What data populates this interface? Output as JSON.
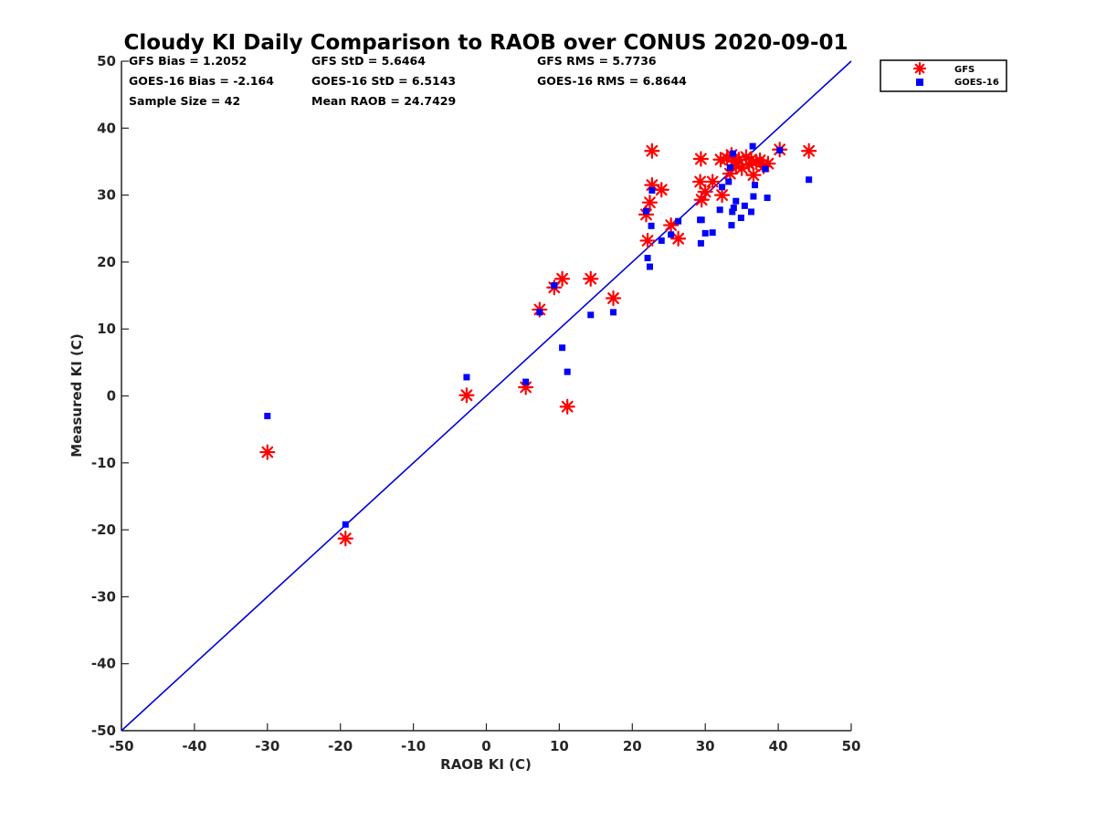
{
  "chart_data": {
    "type": "scatter",
    "title": "Cloudy KI Daily Comparison to RAOB over CONUS 2020-09-01",
    "xlabel": "RAOB KI (C)",
    "ylabel": "Measured KI (C)",
    "xlim": [
      -50,
      50
    ],
    "ylim": [
      -50,
      50
    ],
    "xticks": [
      "-50",
      "-40",
      "-30",
      "-20",
      "-10",
      "0",
      "10",
      "20",
      "30",
      "40",
      "50"
    ],
    "yticks": [
      "-50",
      "-40",
      "-30",
      "-20",
      "-10",
      "0",
      "10",
      "20",
      "30",
      "40",
      "50"
    ],
    "grid": false,
    "legend_position": "outside top-right",
    "reference_line": {
      "type": "one-to-one",
      "color": "#0000dd"
    },
    "stats": [
      [
        "GFS Bias = 1.2052",
        "GFS StD = 5.6464",
        "GFS RMS = 5.7736"
      ],
      [
        "GOES-16 Bias = -2.164",
        "GOES-16 StD = 6.5143",
        "GOES-16 RMS = 6.8644"
      ],
      [
        "Sample Size = 42",
        "Mean RAOB = 24.7429",
        ""
      ]
    ],
    "series": [
      {
        "name": "GFS",
        "marker": "asterisk",
        "color": "#ff0000",
        "points": [
          [
            -30.0,
            -8.4
          ],
          [
            -19.3,
            -21.3
          ],
          [
            -2.7,
            0.1
          ],
          [
            5.4,
            1.3
          ],
          [
            7.3,
            12.9
          ],
          [
            9.3,
            16.2
          ],
          [
            10.4,
            17.5
          ],
          [
            11.1,
            -1.6
          ],
          [
            14.3,
            17.5
          ],
          [
            17.4,
            14.6
          ],
          [
            21.9,
            27.1
          ],
          [
            22.1,
            23.2
          ],
          [
            22.4,
            28.9
          ],
          [
            22.7,
            31.5
          ],
          [
            22.7,
            36.6
          ],
          [
            24.0,
            30.8
          ],
          [
            25.3,
            25.5
          ],
          [
            26.3,
            23.5
          ],
          [
            29.3,
            32.0
          ],
          [
            29.4,
            35.4
          ],
          [
            29.5,
            29.3
          ],
          [
            30.0,
            30.5
          ],
          [
            31.0,
            32.0
          ],
          [
            32.1,
            35.3
          ],
          [
            32.3,
            30.0
          ],
          [
            33.0,
            35.5
          ],
          [
            33.4,
            33.2
          ],
          [
            33.6,
            36.0
          ],
          [
            33.9,
            35.0
          ],
          [
            34.2,
            34.4
          ],
          [
            34.6,
            35.3
          ],
          [
            35.0,
            34.0
          ],
          [
            35.6,
            35.7
          ],
          [
            36.0,
            34.6
          ],
          [
            36.3,
            35.3
          ],
          [
            36.6,
            33.0
          ],
          [
            37.0,
            34.9
          ],
          [
            37.5,
            35.2
          ],
          [
            38.0,
            34.3
          ],
          [
            38.6,
            34.7
          ],
          [
            40.2,
            36.8
          ],
          [
            44.2,
            36.6
          ]
        ]
      },
      {
        "name": "GOES-16",
        "marker": "square",
        "color": "#0000ff",
        "points": [
          [
            -30.0,
            -3.0
          ],
          [
            -19.3,
            -19.2
          ],
          [
            -2.7,
            2.8
          ],
          [
            5.4,
            2.1
          ],
          [
            7.3,
            12.5
          ],
          [
            9.3,
            16.5
          ],
          [
            10.4,
            7.2
          ],
          [
            11.1,
            3.6
          ],
          [
            14.3,
            12.1
          ],
          [
            17.4,
            12.5
          ],
          [
            21.9,
            27.6
          ],
          [
            22.1,
            20.6
          ],
          [
            22.4,
            19.3
          ],
          [
            22.6,
            25.4
          ],
          [
            22.7,
            30.7
          ],
          [
            24.0,
            23.2
          ],
          [
            25.3,
            24.1
          ],
          [
            26.3,
            26.1
          ],
          [
            29.3,
            26.3
          ],
          [
            29.4,
            22.8
          ],
          [
            29.5,
            26.3
          ],
          [
            30.0,
            24.3
          ],
          [
            31.0,
            24.4
          ],
          [
            32.0,
            27.8
          ],
          [
            32.3,
            31.2
          ],
          [
            33.2,
            32.0
          ],
          [
            33.4,
            34.1
          ],
          [
            33.6,
            25.5
          ],
          [
            33.7,
            27.5
          ],
          [
            33.8,
            36.2
          ],
          [
            33.9,
            28.1
          ],
          [
            34.2,
            29.1
          ],
          [
            34.9,
            26.6
          ],
          [
            35.4,
            28.4
          ],
          [
            36.3,
            27.5
          ],
          [
            36.5,
            37.3
          ],
          [
            36.6,
            29.8
          ],
          [
            36.8,
            31.5
          ],
          [
            38.2,
            33.9
          ],
          [
            38.5,
            29.6
          ],
          [
            40.2,
            36.7
          ],
          [
            44.2,
            32.3
          ]
        ]
      }
    ]
  }
}
